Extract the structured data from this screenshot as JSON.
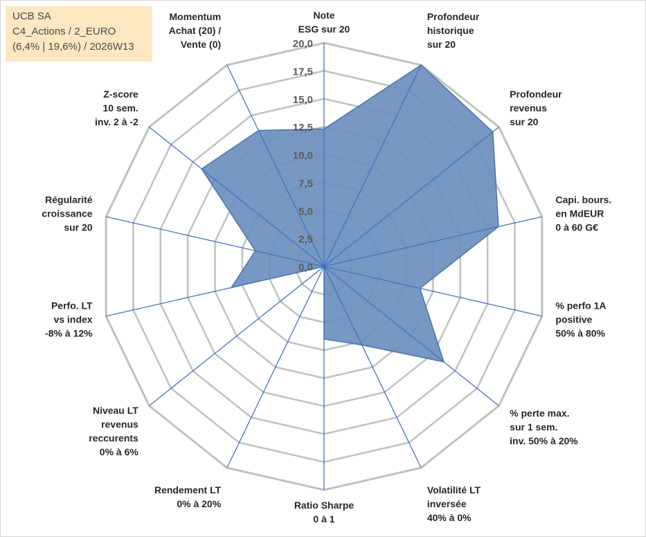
{
  "info": {
    "line1": "UCB SA",
    "line2": "C4_Actions / 2_EURO",
    "line3": "(6,4% | 19,6%) / 2026W13"
  },
  "chart_data": {
    "type": "radar",
    "title": "",
    "scale": {
      "min": 0,
      "max": 20,
      "step": 2.5
    },
    "tick_labels": [
      "0,0",
      "2,5",
      "5,0",
      "7,5",
      "10,0",
      "12,5",
      "15,0",
      "17,5",
      "20,0"
    ],
    "axes": [
      [
        "Note",
        "ESG sur 20"
      ],
      [
        "Profondeur",
        "historique",
        "sur 20"
      ],
      [
        "Profondeur",
        "revenus",
        "sur 20"
      ],
      [
        "Capi. bours.",
        "en MdEUR",
        "0 à 60 G€"
      ],
      [
        "% perfo 1A",
        "positive",
        "50% à 80%"
      ],
      [
        "% perte max.",
        "sur 1 sem.",
        "inv. 50% à 20%"
      ],
      [
        "Volatilité LT",
        "inversée",
        "40% à 0%"
      ],
      [
        "Ratio Sharpe",
        "0 à 1"
      ],
      [
        "Rendement LT",
        "0% à 20%"
      ],
      [
        "Niveau LT",
        "revenus",
        "reccurents",
        "0% à 6%"
      ],
      [
        "Perfo. LT",
        "vs index",
        "-8% à 12%"
      ],
      [
        "Régularité",
        "croissance",
        "sur 20"
      ],
      [
        "Z-score",
        "10 sem.",
        "inv. 2 à -2"
      ],
      [
        "Momentum",
        "Achat (20) /",
        "Vente (0)"
      ]
    ],
    "series": [
      {
        "name": "UCB SA",
        "values": [
          12.3,
          20,
          19.3,
          16.0,
          8.8,
          13.7,
          7.8,
          6.5,
          0,
          0,
          8.5,
          6.3,
          14.0,
          13.5
        ]
      }
    ],
    "colors": {
      "fill": "#6b8fbd",
      "stroke": "#4a72a8",
      "grid": "#c0c0c0",
      "spoke": "#4472c4"
    }
  }
}
